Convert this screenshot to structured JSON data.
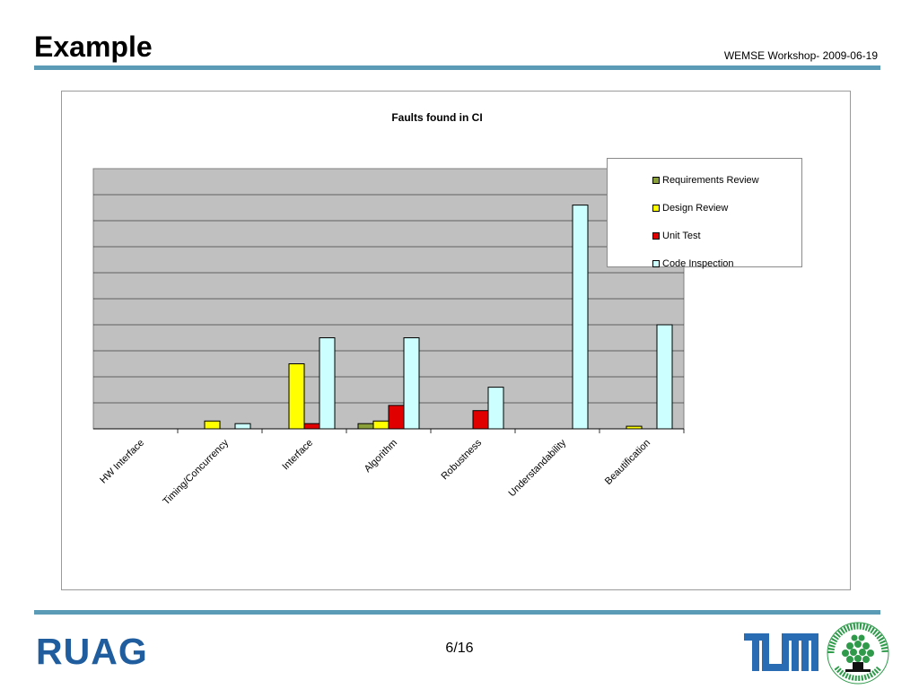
{
  "slide": {
    "title": "Example",
    "meta": "WEMSE Workshop- 2009-06-19",
    "page_number": "6/16"
  },
  "logos": {
    "left": "RUAG",
    "tum": "TUM",
    "bth": "BLEKINGE TEKNISKA HÖGSKOLA · BTH"
  },
  "colors": {
    "rule": "#5b9bb5",
    "plot_background": "#c0c0c0",
    "ruag_blue": "#1f5d9e",
    "tum_blue": "#2a6cb4",
    "bth_green": "#2e9a4a"
  },
  "chart_data": {
    "type": "bar",
    "title": "Faults found in CI",
    "xlabel": "",
    "ylabel": "",
    "ylim": [
      0,
      10
    ],
    "grid": true,
    "legend_position": "top-right",
    "categories": [
      "HW Interface",
      "Timing/Concurrency",
      "Interface",
      "Algorithm",
      "Robustness",
      "Understandability",
      "Beautification"
    ],
    "series": [
      {
        "name": "Requirements Review",
        "color": "#8aa03a",
        "values": [
          0,
          0,
          0,
          0.2,
          0,
          0,
          0
        ]
      },
      {
        "name": "Design Review",
        "color": "#ffff00",
        "values": [
          0,
          0.3,
          2.5,
          0.3,
          0,
          0,
          0.1
        ]
      },
      {
        "name": "Unit Test",
        "color": "#e00000",
        "values": [
          0,
          0,
          0.2,
          0.9,
          0.7,
          0,
          0
        ]
      },
      {
        "name": "Code Inspection",
        "color": "#ccffff",
        "values": [
          0,
          0.2,
          3.5,
          3.5,
          1.6,
          8.6,
          4.0
        ]
      }
    ]
  }
}
